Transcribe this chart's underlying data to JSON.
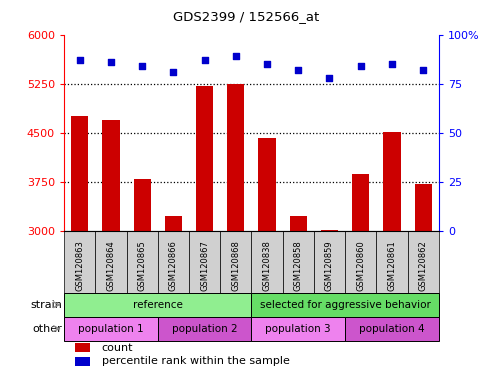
{
  "title": "GDS2399 / 152566_at",
  "samples": [
    "GSM120863",
    "GSM120864",
    "GSM120865",
    "GSM120866",
    "GSM120867",
    "GSM120868",
    "GSM120838",
    "GSM120858",
    "GSM120859",
    "GSM120860",
    "GSM120861",
    "GSM120862"
  ],
  "counts": [
    4750,
    4700,
    3800,
    3230,
    5220,
    5250,
    4420,
    3230,
    3020,
    3870,
    4520,
    3720
  ],
  "percentiles": [
    87,
    86,
    84,
    81,
    87,
    89,
    85,
    82,
    78,
    84,
    85,
    82
  ],
  "ymin": 3000,
  "ymax": 6000,
  "yticks_left": [
    3000,
    3750,
    4500,
    5250,
    6000
  ],
  "yticks_right": [
    0,
    25,
    50,
    75,
    100
  ],
  "ytick_right_labels": [
    "0",
    "25",
    "50",
    "75",
    "100%"
  ],
  "bar_color": "#cc0000",
  "dot_color": "#0000cc",
  "dotted_lines": [
    3750,
    4500,
    5250
  ],
  "strain_groups": [
    {
      "label": "reference",
      "start": 0,
      "end": 6,
      "color": "#90ee90"
    },
    {
      "label": "selected for aggressive behavior",
      "start": 6,
      "end": 12,
      "color": "#66dd66"
    }
  ],
  "other_groups": [
    {
      "label": "population 1",
      "start": 0,
      "end": 3,
      "color": "#ee82ee"
    },
    {
      "label": "population 2",
      "start": 3,
      "end": 6,
      "color": "#cc55cc"
    },
    {
      "label": "population 3",
      "start": 6,
      "end": 9,
      "color": "#ee82ee"
    },
    {
      "label": "population 4",
      "start": 9,
      "end": 12,
      "color": "#cc55cc"
    }
  ],
  "strain_label": "strain",
  "other_label": "other",
  "tick_area_color": "#d0d0d0"
}
